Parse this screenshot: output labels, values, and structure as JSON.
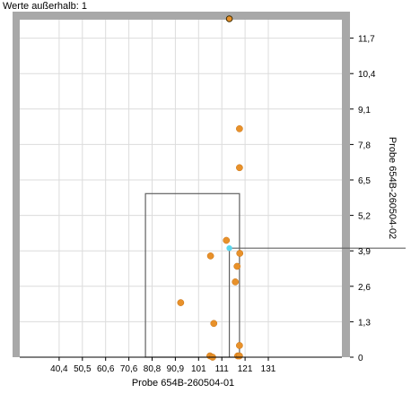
{
  "info_text": "Werte außerhalb: 1",
  "colors": {
    "point": "#e8912a",
    "point_edge": "#c87010",
    "highlight_point": "#5ad8f0",
    "frame": "#a8a8a8",
    "grid": "#dcdcdc",
    "box": "#606060"
  },
  "chart_data": {
    "type": "scatter",
    "xlabel": "Probe 654B-260504-01",
    "ylabel": "Probe 654B-260504-02",
    "x_ticks": [
      "40,4",
      "50,5",
      "60,6",
      "70,6",
      "80,8",
      "90,9",
      "101",
      "111",
      "121",
      "131"
    ],
    "y_ticks": [
      "0",
      "1,3",
      "2,6",
      "3,9",
      "5,2",
      "6,5",
      "7,8",
      "9,1",
      "10,4",
      "11,7"
    ],
    "xlim": [
      30.3,
      131
    ],
    "ylim": [
      0,
      13
    ],
    "grid": true,
    "points": [
      {
        "x": 98.5,
        "y": 8.8
      },
      {
        "x": 98.5,
        "y": 7.3
      },
      {
        "x": 94.1,
        "y": 4.5
      },
      {
        "x": 88.8,
        "y": 3.9
      },
      {
        "x": 98.6,
        "y": 4.0
      },
      {
        "x": 97.7,
        "y": 3.5
      },
      {
        "x": 97.1,
        "y": 2.9
      },
      {
        "x": 78.8,
        "y": 2.1
      },
      {
        "x": 89.9,
        "y": 1.3
      },
      {
        "x": 98.5,
        "y": 0.45
      },
      {
        "x": 88.6,
        "y": 0.05
      },
      {
        "x": 89.5,
        "y": 0.0
      },
      {
        "x": 97.9,
        "y": 0.05
      },
      {
        "x": 98.5,
        "y": 0.05
      }
    ],
    "highlight_point": {
      "x": 95.1,
      "y": 4.2
    },
    "outlier_point": {
      "x": 95.1,
      "y": 13.0
    },
    "box": {
      "x0": 67.0,
      "x1": 98.5,
      "y0": 0,
      "y1": 6.3
    }
  }
}
